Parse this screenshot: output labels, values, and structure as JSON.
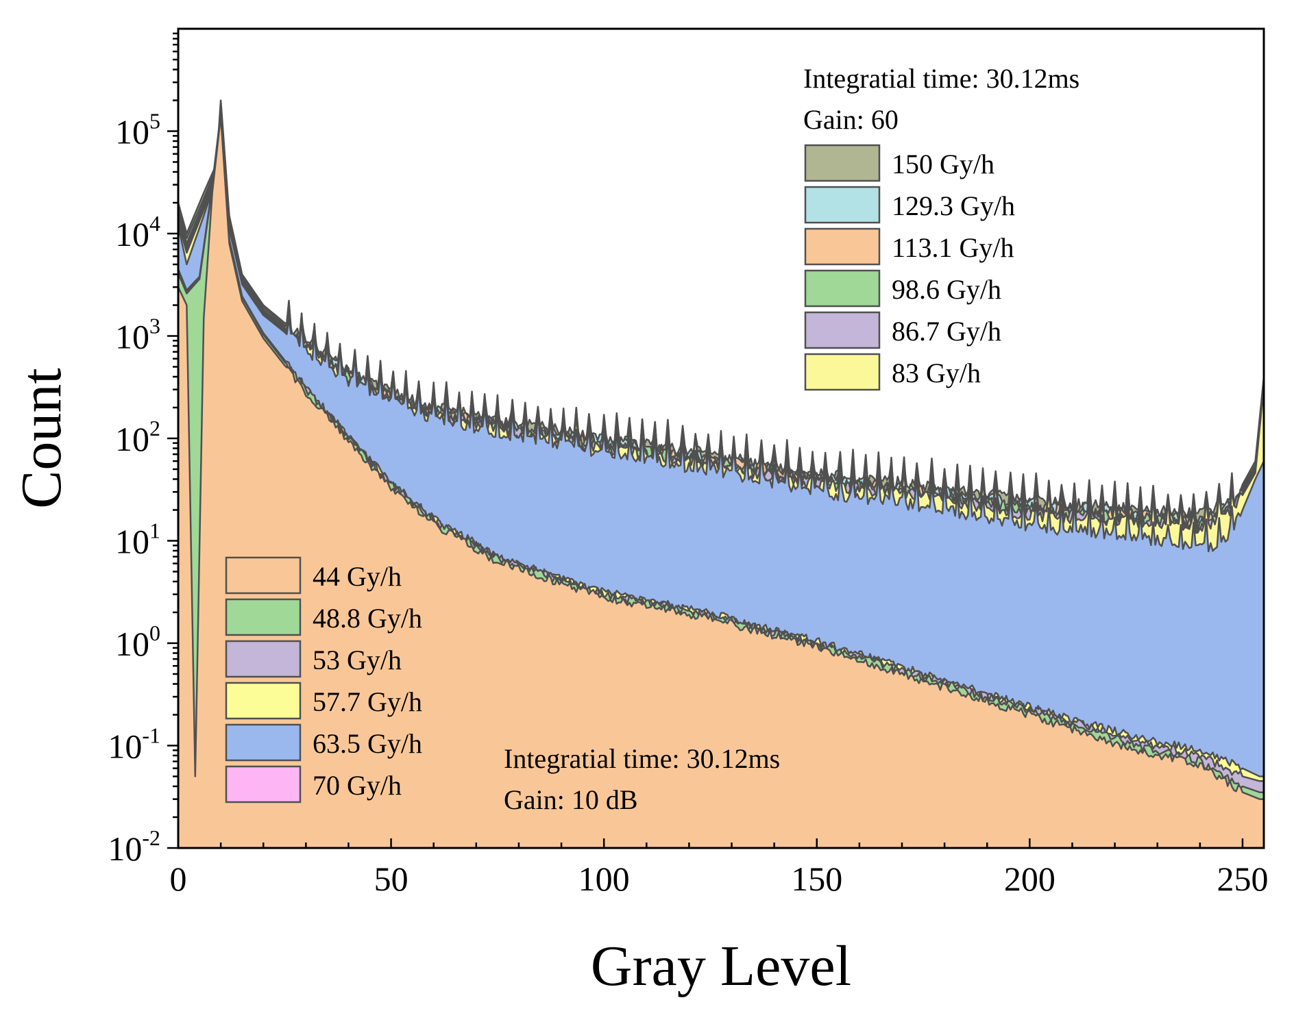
{
  "chart_data": {
    "type": "area",
    "title": "",
    "xlabel": "Gray Level",
    "ylabel": "Count",
    "xlim": [
      0,
      255
    ],
    "ylim": [
      0.01,
      1000000
    ],
    "yscale": "log",
    "grid": false,
    "x_ticks": [
      {
        "value": 0,
        "label": "0"
      },
      {
        "value": 50,
        "label": "50"
      },
      {
        "value": 100,
        "label": "100"
      },
      {
        "value": 150,
        "label": "150"
      },
      {
        "value": 200,
        "label": "200"
      },
      {
        "value": 250,
        "label": "250"
      }
    ],
    "y_ticks": [
      {
        "value": 0.01,
        "base": "10",
        "exp": "-2"
      },
      {
        "value": 0.1,
        "base": "10",
        "exp": "-1"
      },
      {
        "value": 1,
        "base": "10",
        "exp": "0"
      },
      {
        "value": 10,
        "base": "10",
        "exp": "1"
      },
      {
        "value": 100,
        "base": "10",
        "exp": "2"
      },
      {
        "value": 1000,
        "base": "10",
        "exp": "3"
      },
      {
        "value": 10000,
        "base": "10",
        "exp": "4"
      },
      {
        "value": 100000,
        "base": "10",
        "exp": "5"
      }
    ],
    "outline_color": "#505050",
    "series": [
      {
        "name": "150 Gy/h",
        "color": "#b0b592",
        "low_group": false,
        "points": [
          [
            0,
            20000
          ],
          [
            2,
            10000
          ],
          [
            6,
            25000
          ],
          [
            9,
            48000
          ],
          [
            10,
            200000
          ],
          [
            12,
            15000
          ],
          [
            15,
            4000
          ],
          [
            20,
            2000
          ],
          [
            30,
            900
          ],
          [
            40,
            450
          ],
          [
            50,
            280
          ],
          [
            60,
            200
          ],
          [
            75,
            150
          ],
          [
            100,
            100
          ],
          [
            130,
            65
          ],
          [
            150,
            45
          ],
          [
            175,
            35
          ],
          [
            200,
            25
          ],
          [
            225,
            20
          ],
          [
            240,
            18
          ],
          [
            248,
            25
          ],
          [
            253,
            60
          ],
          [
            255,
            400
          ]
        ],
        "min": 0.003
      },
      {
        "name": "129.3 Gy/h",
        "color": "#b2e1e6",
        "low_group": false,
        "points": [
          [
            0,
            18000
          ],
          [
            2,
            9000
          ],
          [
            6,
            22000
          ],
          [
            9,
            45000
          ],
          [
            10,
            190000
          ],
          [
            12,
            14000
          ],
          [
            15,
            3800
          ],
          [
            20,
            1900
          ],
          [
            30,
            860
          ],
          [
            40,
            430
          ],
          [
            50,
            265
          ],
          [
            60,
            190
          ],
          [
            75,
            142
          ],
          [
            100,
            95
          ],
          [
            130,
            61
          ],
          [
            150,
            42
          ],
          [
            175,
            32
          ],
          [
            200,
            23
          ],
          [
            225,
            19
          ],
          [
            240,
            16
          ],
          [
            248,
            24
          ],
          [
            253,
            55
          ],
          [
            255,
            380
          ]
        ],
        "min": 0.003
      },
      {
        "name": "113.1 Gy/h",
        "color": "#f9c797",
        "low_group": false,
        "points": [
          [
            0,
            16000
          ],
          [
            2,
            8000
          ],
          [
            6,
            20000
          ],
          [
            9,
            42000
          ],
          [
            10,
            180000
          ],
          [
            12,
            13000
          ],
          [
            15,
            3600
          ],
          [
            20,
            1800
          ],
          [
            30,
            830
          ],
          [
            40,
            415
          ],
          [
            50,
            255
          ],
          [
            60,
            182
          ],
          [
            75,
            136
          ],
          [
            100,
            90
          ],
          [
            130,
            58
          ],
          [
            150,
            40
          ],
          [
            175,
            30
          ],
          [
            200,
            21
          ],
          [
            225,
            18
          ],
          [
            240,
            15
          ],
          [
            248,
            23
          ],
          [
            253,
            52
          ],
          [
            255,
            360
          ]
        ],
        "min": 0.003
      },
      {
        "name": "98.6 Gy/h",
        "color": "#9fd897",
        "low_group": false,
        "points": [
          [
            0,
            15000
          ],
          [
            2,
            7500
          ],
          [
            6,
            19000
          ],
          [
            9,
            40000
          ],
          [
            10,
            175000
          ],
          [
            12,
            12500
          ],
          [
            15,
            3500
          ],
          [
            20,
            1750
          ],
          [
            30,
            800
          ],
          [
            40,
            400
          ],
          [
            50,
            245
          ],
          [
            60,
            175
          ],
          [
            75,
            130
          ],
          [
            100,
            86
          ],
          [
            130,
            55
          ],
          [
            150,
            38
          ],
          [
            175,
            29
          ],
          [
            200,
            20
          ],
          [
            225,
            17
          ],
          [
            240,
            14
          ],
          [
            248,
            22
          ],
          [
            253,
            50
          ],
          [
            255,
            350
          ]
        ],
        "min": 0.003
      },
      {
        "name": "86.7 Gy/h",
        "color": "#c3b6d8",
        "low_group": false,
        "points": [
          [
            0,
            14000
          ],
          [
            2,
            7000
          ],
          [
            6,
            18000
          ],
          [
            9,
            38000
          ],
          [
            10,
            170000
          ],
          [
            12,
            12000
          ],
          [
            15,
            3400
          ],
          [
            20,
            1700
          ],
          [
            30,
            780
          ],
          [
            40,
            390
          ],
          [
            50,
            238
          ],
          [
            60,
            170
          ],
          [
            75,
            125
          ],
          [
            100,
            82
          ],
          [
            130,
            53
          ],
          [
            150,
            36
          ],
          [
            175,
            28
          ],
          [
            200,
            19
          ],
          [
            225,
            16
          ],
          [
            240,
            13
          ],
          [
            248,
            21
          ],
          [
            253,
            48
          ],
          [
            255,
            340
          ]
        ],
        "min": 0.003
      },
      {
        "name": "83 Gy/h",
        "color": "#fbf89a",
        "low_group": false,
        "points": [
          [
            0,
            13000
          ],
          [
            2,
            6500
          ],
          [
            6,
            17000
          ],
          [
            9,
            36000
          ],
          [
            10,
            165000
          ],
          [
            12,
            11500
          ],
          [
            15,
            3300
          ],
          [
            20,
            1650
          ],
          [
            30,
            760
          ],
          [
            40,
            380
          ],
          [
            50,
            232
          ],
          [
            60,
            165
          ],
          [
            75,
            121
          ],
          [
            100,
            80
          ],
          [
            130,
            51
          ],
          [
            150,
            35
          ],
          [
            175,
            27
          ],
          [
            200,
            18
          ],
          [
            225,
            15
          ],
          [
            240,
            13
          ],
          [
            248,
            20
          ],
          [
            253,
            46
          ],
          [
            255,
            330
          ]
        ],
        "min": 0.003
      },
      {
        "name": "70 Gy/h",
        "color": "#fdb5f4",
        "low_group": true,
        "points": [
          [
            0,
            5000
          ],
          [
            2,
            3000
          ],
          [
            5,
            4000
          ],
          [
            8,
            30000
          ],
          [
            10,
            150000
          ],
          [
            12,
            9000
          ],
          [
            15,
            2500
          ],
          [
            20,
            1100
          ],
          [
            30,
            330
          ],
          [
            40,
            110
          ],
          [
            50,
            40
          ],
          [
            60,
            18
          ],
          [
            75,
            7.5
          ],
          [
            100,
            3.4
          ],
          [
            125,
            2.1
          ],
          [
            150,
            1.15
          ],
          [
            175,
            0.55
          ],
          [
            200,
            0.27
          ],
          [
            225,
            0.14
          ],
          [
            240,
            0.1
          ],
          [
            250,
            0.075
          ],
          [
            254,
            0.06
          ]
        ],
        "min": 0.01
      },
      {
        "name": "63.5 Gy/h",
        "color": "#9bb8ee",
        "low_group": true,
        "points": [
          [
            0,
            12000
          ],
          [
            2,
            5000
          ],
          [
            6,
            15000
          ],
          [
            9,
            35000
          ],
          [
            10,
            160000
          ],
          [
            12,
            11000
          ],
          [
            15,
            3200
          ],
          [
            20,
            1600
          ],
          [
            30,
            740
          ],
          [
            40,
            370
          ],
          [
            50,
            225
          ],
          [
            60,
            160
          ],
          [
            75,
            115
          ],
          [
            100,
            72
          ],
          [
            130,
            45
          ],
          [
            150,
            30
          ],
          [
            175,
            22
          ],
          [
            200,
            14
          ],
          [
            225,
            11
          ],
          [
            240,
            8.5
          ],
          [
            245,
            9
          ],
          [
            250,
            20
          ],
          [
            253,
            40
          ],
          [
            255,
            60
          ]
        ],
        "min": 0.003
      },
      {
        "name": "57.7 Gy/h",
        "color": "#fdfd98",
        "low_group": true,
        "points": [
          [
            0,
            4500
          ],
          [
            2,
            2800
          ],
          [
            5,
            3800
          ],
          [
            8,
            29000
          ],
          [
            10,
            148000
          ],
          [
            12,
            8800
          ],
          [
            15,
            2450
          ],
          [
            20,
            1070
          ],
          [
            30,
            315
          ],
          [
            40,
            104
          ],
          [
            50,
            37
          ],
          [
            60,
            16.5
          ],
          [
            75,
            7
          ],
          [
            100,
            3.15
          ],
          [
            125,
            1.95
          ],
          [
            150,
            1.05
          ],
          [
            175,
            0.5
          ],
          [
            200,
            0.24
          ],
          [
            225,
            0.12
          ],
          [
            240,
            0.09
          ],
          [
            250,
            0.06
          ],
          [
            254,
            0.05
          ]
        ],
        "min": 0.01
      },
      {
        "name": "53 Gy/h",
        "color": "#c3b6d8",
        "low_group": true,
        "points": [
          [
            0,
            4300
          ],
          [
            2,
            2700
          ],
          [
            5,
            3700
          ],
          [
            8,
            28500
          ],
          [
            10,
            146000
          ],
          [
            12,
            8700
          ],
          [
            15,
            2420
          ],
          [
            20,
            1050
          ],
          [
            30,
            308
          ],
          [
            40,
            101
          ],
          [
            50,
            36
          ],
          [
            60,
            16
          ],
          [
            75,
            6.8
          ],
          [
            100,
            3.05
          ],
          [
            125,
            1.9
          ],
          [
            150,
            1.0
          ],
          [
            175,
            0.48
          ],
          [
            200,
            0.23
          ],
          [
            225,
            0.11
          ],
          [
            240,
            0.08
          ],
          [
            250,
            0.05
          ],
          [
            254,
            0.045
          ]
        ],
        "min": 0.01
      },
      {
        "name": "48.8 Gy/h",
        "color": "#9fd897",
        "low_group": true,
        "points": [
          [
            0,
            4100
          ],
          [
            2,
            2600
          ],
          [
            5,
            3600
          ],
          [
            8,
            28000
          ],
          [
            10,
            145000
          ],
          [
            12,
            8600
          ],
          [
            15,
            2400
          ],
          [
            20,
            1030
          ],
          [
            30,
            300
          ],
          [
            40,
            98
          ],
          [
            50,
            35
          ],
          [
            60,
            15.5
          ],
          [
            75,
            6.6
          ],
          [
            100,
            2.95
          ],
          [
            125,
            1.85
          ],
          [
            150,
            0.97
          ],
          [
            175,
            0.46
          ],
          [
            200,
            0.22
          ],
          [
            225,
            0.1
          ],
          [
            240,
            0.07
          ],
          [
            250,
            0.04
          ],
          [
            254,
            0.035
          ]
        ],
        "min": 0.01
      },
      {
        "name": "44 Gy/h",
        "color": "#f9c797",
        "low_group": true,
        "points": [
          [
            0,
            3000
          ],
          [
            2,
            2000
          ],
          [
            4,
            0.05
          ],
          [
            6,
            1500
          ],
          [
            8,
            25000
          ],
          [
            10,
            140000
          ],
          [
            12,
            8000
          ],
          [
            15,
            2200
          ],
          [
            20,
            950
          ],
          [
            30,
            280
          ],
          [
            40,
            92
          ],
          [
            50,
            33
          ],
          [
            60,
            14.5
          ],
          [
            75,
            6.2
          ],
          [
            100,
            2.8
          ],
          [
            125,
            1.75
          ],
          [
            150,
            0.92
          ],
          [
            175,
            0.43
          ],
          [
            200,
            0.2
          ],
          [
            225,
            0.09
          ],
          [
            240,
            0.065
          ],
          [
            250,
            0.035
          ],
          [
            254,
            0.03
          ]
        ],
        "min": 0.01
      }
    ],
    "legend_top": {
      "items": [
        "150 Gy/h",
        "129.3 Gy/h",
        "113.1 Gy/h",
        "98.6 Gy/h",
        "86.7 Gy/h",
        "83 Gy/h"
      ],
      "location": "top-right"
    },
    "legend_bottom": {
      "items": [
        "44 Gy/h",
        "48.8 Gy/h",
        "53 Gy/h",
        "57.7 Gy/h",
        "63.5 Gy/h",
        "70 Gy/h"
      ],
      "location": "bottom-left"
    },
    "annotation_top": {
      "line1": "Integratial time: 30.12ms",
      "line2": "Gain: 60"
    },
    "annotation_bottom": {
      "line1": "Integratial time: 30.12ms",
      "line2": "Gain: 10 dB"
    }
  }
}
